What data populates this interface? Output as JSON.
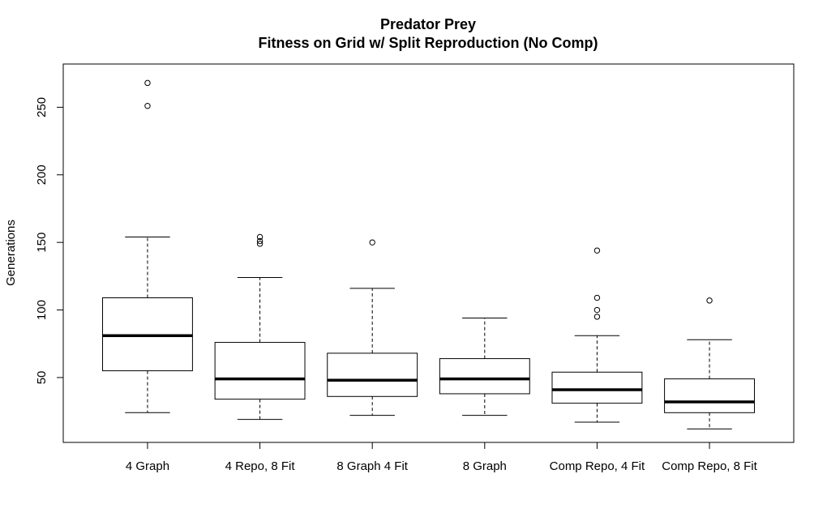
{
  "chart_data": {
    "type": "boxplot",
    "title": "Predator Prey",
    "subtitle": "Fitness on Grid w/ Split Reproduction (No Comp)",
    "xlabel": "",
    "ylabel": "Generations",
    "ylim": [
      2,
      282
    ],
    "yticks": [
      50,
      100,
      150,
      200,
      250
    ],
    "grid": false,
    "categories": [
      "4 Graph",
      "4 Repo, 8 Fit",
      "8 Graph 4 Fit",
      "8 Graph",
      "Comp Repo, 4 Fit",
      "Comp Repo, 8 Fit"
    ],
    "boxes": [
      {
        "whisker_low": 24,
        "q1": 55,
        "median": 81,
        "q3": 109,
        "whisker_high": 154,
        "outliers": [
          251,
          268
        ]
      },
      {
        "whisker_low": 19,
        "q1": 34,
        "median": 49,
        "q3": 76,
        "whisker_high": 124,
        "outliers": [
          149,
          151,
          154
        ]
      },
      {
        "whisker_low": 22,
        "q1": 36,
        "median": 48,
        "q3": 68,
        "whisker_high": 116,
        "outliers": [
          150
        ]
      },
      {
        "whisker_low": 22,
        "q1": 38,
        "median": 49,
        "q3": 64,
        "whisker_high": 94,
        "outliers": []
      },
      {
        "whisker_low": 17,
        "q1": 31,
        "median": 41,
        "q3": 54,
        "whisker_high": 81,
        "outliers": [
          95,
          100,
          109,
          144
        ]
      },
      {
        "whisker_low": 12,
        "q1": 24,
        "median": 32,
        "q3": 49,
        "whisker_high": 78,
        "outliers": [
          107
        ]
      }
    ]
  }
}
